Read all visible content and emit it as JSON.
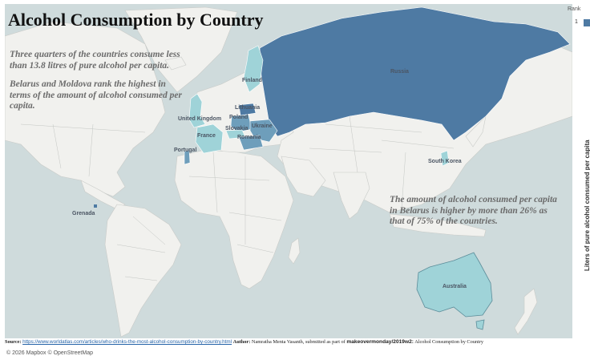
{
  "title": "Alcohol Consumption by Country",
  "annotations": {
    "quartile": "Three quarters of the countries consume less than 13.8 litres of pure alcohol per capita.",
    "highest": "Belarus and Moldova rank the highest in terms of the amount of alcohol consumed per capita.",
    "belarus": "The amount of alcohol consumed per capita in Belarus is higher by more than 26% as that of 75% of the countries."
  },
  "legend": {
    "title": "Rank",
    "value": "1",
    "swatch_color": "#4e7aa3"
  },
  "axis_title": "Liters of pure alcohol consumed per capita",
  "color_scale": {
    "light": "#9fd3d8",
    "mid": "#6e9ebb",
    "dark": "#4e7aa3"
  },
  "countries": [
    {
      "name": "Russia",
      "label": "Russia",
      "shade": "dark"
    },
    {
      "name": "Finland",
      "label": "Finland",
      "shade": "light"
    },
    {
      "name": "Lithuania",
      "label": "Lithuania",
      "shade": "dark"
    },
    {
      "name": "United Kingdom",
      "label": "United Kingdom",
      "shade": "light"
    },
    {
      "name": "Poland",
      "label": "Poland",
      "shade": "mid"
    },
    {
      "name": "Ukraine",
      "label": "Ukraine",
      "shade": "mid"
    },
    {
      "name": "Slovakia",
      "label": "Slovakia",
      "shade": "light"
    },
    {
      "name": "Romania",
      "label": "Romania",
      "shade": "mid"
    },
    {
      "name": "France",
      "label": "France",
      "shade": "light"
    },
    {
      "name": "Portugal",
      "label": "Portugal",
      "shade": "mid"
    },
    {
      "name": "South Korea",
      "label": "South Korea",
      "shade": "light"
    },
    {
      "name": "Australia",
      "label": "Australia",
      "shade": "light"
    },
    {
      "name": "Grenada",
      "label": "Grenada",
      "shade": "dark"
    }
  ],
  "source": {
    "source_label": "Source:",
    "url": "https://www.worldatlas.com/articles/who-drinks-the-most-alcohol-consumption-by-country.html",
    "author_label": "Author:",
    "author_text": "Namratha Menta Vasanth, submitted as part of",
    "tag": "makeovermonday/2019w2:",
    "tail": "Alcohol Consumption by Country"
  },
  "attribution": "© 2026 Mapbox  © OpenStreetMap"
}
